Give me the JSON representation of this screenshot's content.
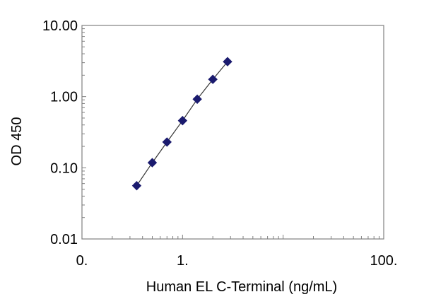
{
  "chart_data": {
    "type": "scatter",
    "title": "",
    "xlabel": "Human  EL C-Terminal  (ng/mL)",
    "ylabel": "OD 450",
    "x_scale": "log",
    "y_scale": "log",
    "xlim": [
      0.1,
      100
    ],
    "ylim": [
      0.01,
      10
    ],
    "x_tick_labels": [
      {
        "value": 0.1,
        "label": "0."
      },
      {
        "value": 1,
        "label": "1."
      },
      {
        "value": 100,
        "label": "100."
      }
    ],
    "y_tick_labels": [
      {
        "value": 10,
        "label": "10.00"
      },
      {
        "value": 1,
        "label": "1.00"
      },
      {
        "value": 0.1,
        "label": "0.10"
      },
      {
        "value": 0.01,
        "label": "0.01"
      }
    ],
    "grid": false,
    "legend": "none",
    "series": [
      {
        "marker": "diamond",
        "color": "#1a1a6e",
        "line_color": "#333333",
        "x": [
          0.35,
          0.5,
          0.7,
          1.0,
          1.4,
          2.0,
          2.8
        ],
        "y": [
          0.056,
          0.118,
          0.23,
          0.46,
          0.92,
          1.75,
          3.1
        ]
      }
    ]
  }
}
